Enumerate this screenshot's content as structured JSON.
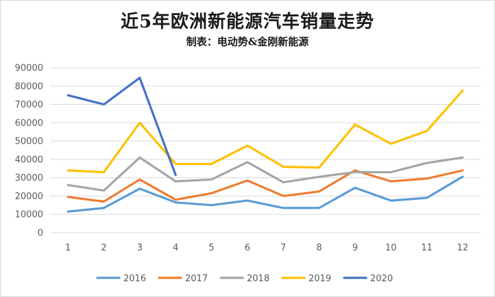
{
  "chart_data": {
    "type": "line",
    "title": "近5年欧洲新能源汽车销量走势",
    "subtitle": "制表：电动势&金刚新能源",
    "xlabel": "",
    "ylabel": "",
    "x": [
      "1",
      "2",
      "3",
      "4",
      "5",
      "6",
      "7",
      "8",
      "9",
      "10",
      "11",
      "12"
    ],
    "ylim": [
      0,
      90000
    ],
    "yticks": [
      0,
      10000,
      20000,
      30000,
      40000,
      50000,
      60000,
      70000,
      80000,
      90000
    ],
    "grid": "horizontal",
    "legend": "bottom",
    "series": [
      {
        "name": "2016",
        "color": "#5b9bd5",
        "values": [
          11500,
          13500,
          24000,
          16500,
          15000,
          17500,
          13500,
          13500,
          24500,
          17500,
          19000,
          30500
        ]
      },
      {
        "name": "2017",
        "color": "#ed7d31",
        "values": [
          19500,
          17000,
          29000,
          18000,
          21500,
          28500,
          20000,
          22500,
          34000,
          28000,
          29500,
          34000
        ]
      },
      {
        "name": "2018",
        "color": "#a5a5a5",
        "values": [
          26000,
          23000,
          41000,
          28000,
          29000,
          38500,
          27500,
          30500,
          33000,
          33000,
          38000,
          41000
        ]
      },
      {
        "name": "2019",
        "color": "#ffc000",
        "values": [
          34000,
          33000,
          60000,
          37500,
          37500,
          47500,
          36000,
          35500,
          59000,
          48500,
          55500,
          77500
        ]
      },
      {
        "name": "2020",
        "color": "#4472c4",
        "values": [
          75000,
          70000,
          84500,
          31500,
          null,
          null,
          null,
          null,
          null,
          null,
          null,
          null
        ]
      }
    ]
  }
}
